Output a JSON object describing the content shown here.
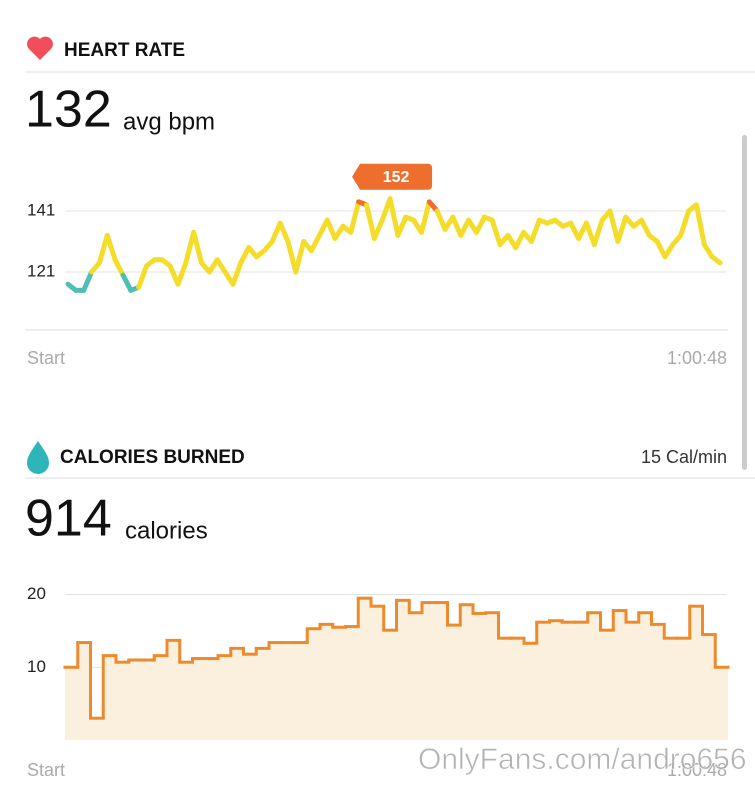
{
  "chart_data": [
    {
      "type": "line",
      "title": "HEART RATE",
      "summary_value": 132,
      "summary_unit": "avg bpm",
      "x_start_label": "Start",
      "x_end_label": "1:00:48",
      "max_label": 152,
      "values": [
        117,
        115,
        115,
        121,
        124,
        133,
        125,
        120,
        115,
        116,
        123,
        125,
        125,
        123,
        117,
        124,
        134,
        124,
        121,
        125,
        121,
        117,
        124,
        129,
        126,
        128,
        131,
        137,
        131,
        121,
        131,
        128,
        133,
        138,
        132,
        136,
        134,
        144,
        143,
        132,
        138,
        145,
        133,
        139,
        138,
        134,
        144,
        141,
        135,
        139,
        133,
        138,
        134,
        139,
        138,
        130,
        133,
        129,
        134,
        131,
        138,
        137,
        138,
        136,
        137,
        132,
        137,
        130,
        138,
        141,
        131,
        139,
        136,
        138,
        133,
        131,
        126,
        130,
        133,
        141,
        143,
        130,
        126,
        124
      ],
      "color": "#f3dd2a",
      "zones": [
        {
          "below": 119,
          "color": "#4fbfb5"
        },
        {
          "above": 142,
          "color": "#ee6f2d"
        }
      ],
      "ylim": [
        102,
        160
      ],
      "yticks": [
        121,
        141
      ],
      "grid": true
    },
    {
      "type": "step",
      "title": "CALORIES BURNED",
      "rate_label": "15 Cal/min",
      "summary_value": 914,
      "summary_unit": "calories",
      "x_start_label": "Start",
      "x_end_label": "1:00:48",
      "values": [
        10,
        13.4,
        3,
        11.6,
        10.7,
        11,
        11,
        11.6,
        13.7,
        10.7,
        11.2,
        11.2,
        11.6,
        12.6,
        11.8,
        12.6,
        13.4,
        13.4,
        13.4,
        15.3,
        15.9,
        15.5,
        15.6,
        19.5,
        18.4,
        15.1,
        19.2,
        17.5,
        18.9,
        18.9,
        15.8,
        18.6,
        17.4,
        17.5,
        14,
        14,
        13.3,
        16.2,
        16.4,
        16.2,
        16.2,
        17.5,
        15.1,
        17.8,
        16.2,
        17.5,
        15.9,
        14,
        14,
        18.4,
        14.5,
        10
      ],
      "color": "#ec8a2c",
      "fill": "#fbf0de",
      "ylim": [
        0,
        22
      ],
      "yticks": [
        10,
        20
      ],
      "grid": true
    }
  ],
  "watermark": "OnlyFans.com/andro656"
}
